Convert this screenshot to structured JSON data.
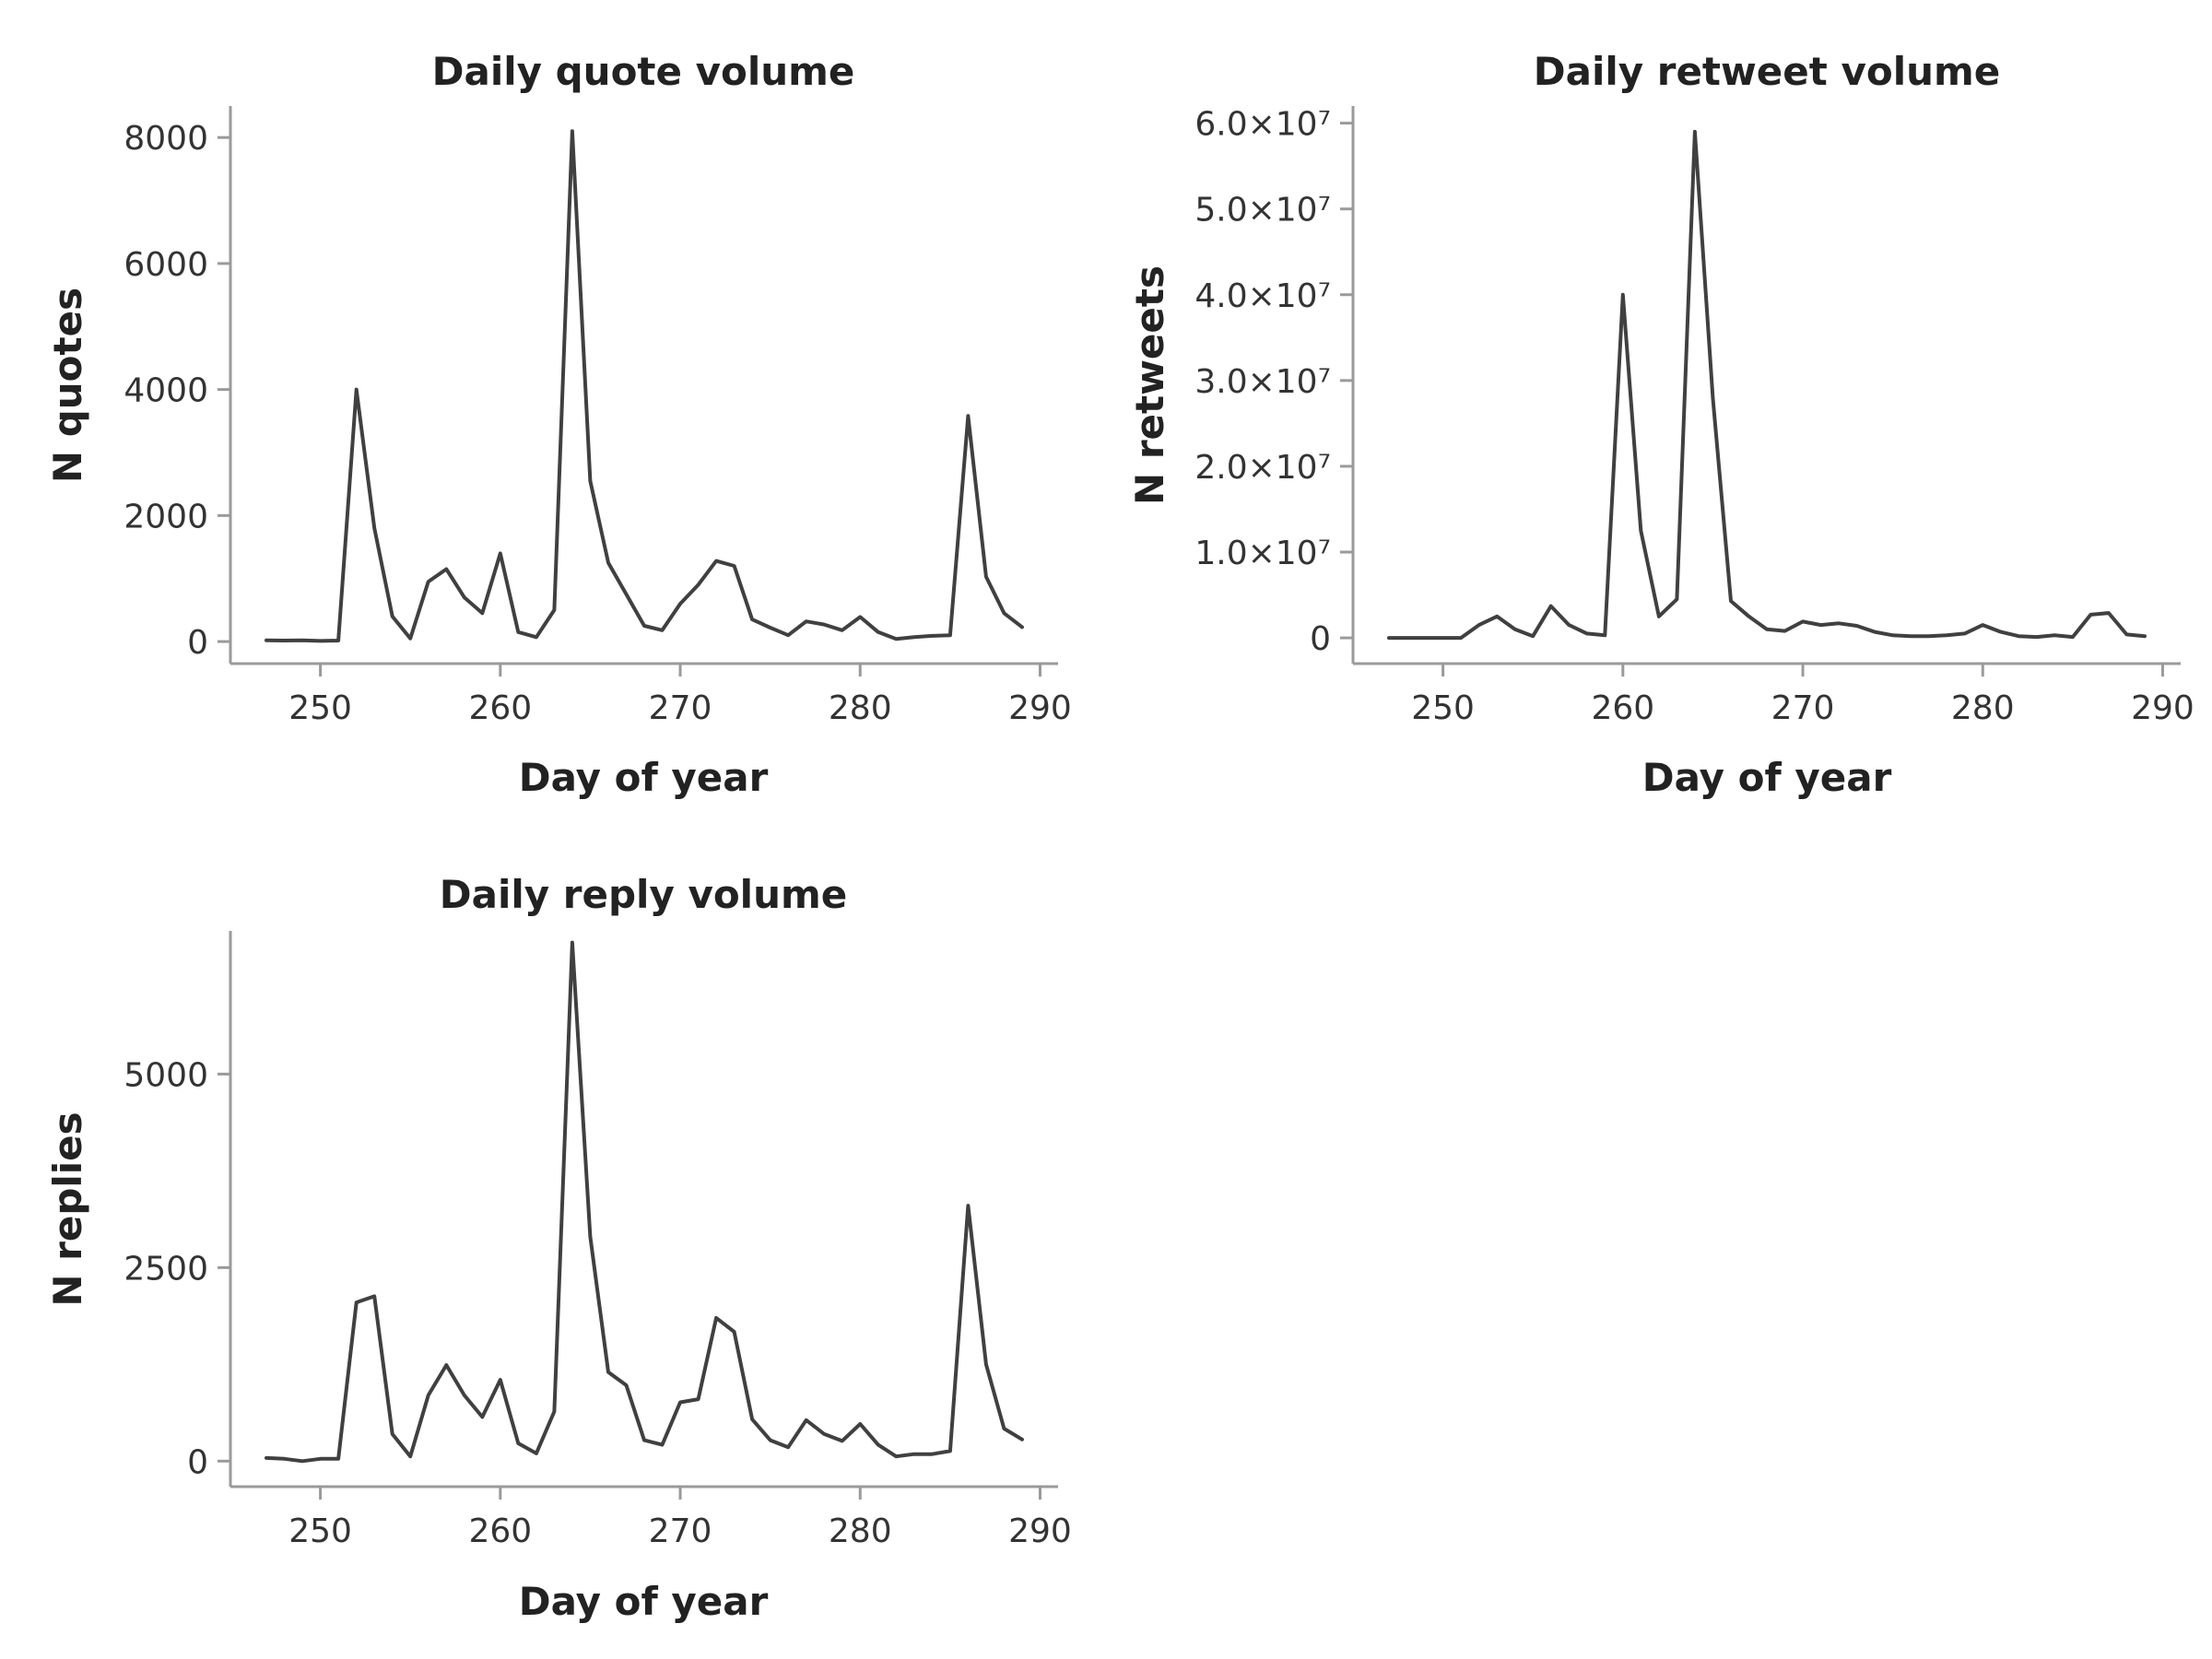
{
  "chart_data": [
    {
      "type": "line",
      "title": "Daily quote volume",
      "xlabel": "Day of year",
      "ylabel": "N quotes",
      "xlim": [
        245,
        291
      ],
      "ylim": [
        -350,
        8500
      ],
      "xticks": [
        250,
        260,
        270,
        280,
        290
      ],
      "xtick_labels": [
        "250",
        "260",
        "270",
        "280",
        "290"
      ],
      "yticks": [
        0,
        2000,
        4000,
        6000,
        8000
      ],
      "ytick_labels": [
        "0",
        "2000",
        "4000",
        "6000",
        "8000"
      ],
      "x": [
        247,
        248,
        249,
        250,
        251,
        252,
        253,
        254,
        255,
        256,
        257,
        258,
        259,
        260,
        261,
        262,
        263,
        264,
        265,
        266,
        267,
        268,
        269,
        270,
        271,
        272,
        273,
        274,
        275,
        276,
        277,
        278,
        279,
        280,
        281,
        282,
        283,
        284,
        285,
        286,
        287,
        288,
        289
      ],
      "series": [
        {
          "values": [
            20,
            15,
            20,
            10,
            15,
            4000,
            1800,
            400,
            50,
            950,
            1150,
            700,
            450,
            1400,
            150,
            70,
            500,
            8100,
            2550,
            1250,
            750,
            250,
            180,
            600,
            900,
            1280,
            1200,
            350,
            220,
            100,
            320,
            270,
            180,
            390,
            150,
            40,
            70,
            90,
            100,
            3580,
            1030,
            450,
            230
          ]
        }
      ],
      "line_color": "#404040",
      "grid": false
    },
    {
      "type": "line",
      "title": "Daily retweet volume",
      "xlabel": "Day of year",
      "ylabel": "N retweets",
      "xlim": [
        245,
        291
      ],
      "ylim": [
        -3000000,
        62000000
      ],
      "xticks": [
        250,
        260,
        270,
        280,
        290
      ],
      "xtick_labels": [
        "250",
        "260",
        "270",
        "280",
        "290"
      ],
      "yticks": [
        0,
        10000000,
        20000000,
        30000000,
        40000000,
        50000000,
        60000000
      ],
      "ytick_labels": [
        "0",
        "1.0×10⁷",
        "2.0×10⁷",
        "3.0×10⁷",
        "4.0×10⁷",
        "5.0×10⁷",
        "6.0×10⁷"
      ],
      "x": [
        247,
        248,
        249,
        250,
        251,
        252,
        253,
        254,
        255,
        256,
        257,
        258,
        259,
        260,
        261,
        262,
        263,
        264,
        265,
        266,
        267,
        268,
        269,
        270,
        271,
        272,
        273,
        274,
        275,
        276,
        277,
        278,
        279,
        280,
        281,
        282,
        283,
        284,
        285,
        286,
        287,
        288,
        289
      ],
      "series": [
        {
          "values": [
            0,
            0,
            0,
            0,
            0,
            1500000,
            2500000,
            1000000,
            200000,
            3700000,
            1500000,
            500000,
            300000,
            40000000,
            12500000,
            2500000,
            4500000,
            59000000,
            28000000,
            4300000,
            2500000,
            1000000,
            800000,
            1900000,
            1500000,
            1700000,
            1400000,
            700000,
            300000,
            200000,
            200000,
            300000,
            500000,
            1500000,
            700000,
            200000,
            100000,
            300000,
            100000,
            2700000,
            2900000,
            400000,
            200000
          ]
        }
      ],
      "line_color": "#404040",
      "grid": false
    },
    {
      "type": "line",
      "title": "Daily reply volume",
      "xlabel": "Day of year",
      "ylabel": "N replies",
      "xlim": [
        245,
        291
      ],
      "ylim": [
        -330,
        6850
      ],
      "xticks": [
        250,
        260,
        270,
        280,
        290
      ],
      "xtick_labels": [
        "250",
        "260",
        "270",
        "280",
        "290"
      ],
      "yticks": [
        0,
        2500,
        5000
      ],
      "ytick_labels": [
        "0",
        "2500",
        "5000"
      ],
      "x": [
        247,
        248,
        249,
        250,
        251,
        252,
        253,
        254,
        255,
        256,
        257,
        258,
        259,
        260,
        261,
        262,
        263,
        264,
        265,
        266,
        267,
        268,
        269,
        270,
        271,
        272,
        273,
        274,
        275,
        276,
        277,
        278,
        279,
        280,
        281,
        282,
        283,
        284,
        285,
        286,
        287,
        288,
        289
      ],
      "series": [
        {
          "values": [
            40,
            30,
            0,
            30,
            30,
            2050,
            2130,
            350,
            60,
            850,
            1240,
            850,
            570,
            1050,
            230,
            100,
            640,
            6700,
            2900,
            1150,
            980,
            270,
            210,
            760,
            800,
            1850,
            1670,
            540,
            270,
            180,
            530,
            350,
            260,
            480,
            210,
            60,
            90,
            90,
            130,
            3300,
            1250,
            420,
            280
          ]
        }
      ],
      "line_color": "#404040",
      "grid": false
    }
  ]
}
